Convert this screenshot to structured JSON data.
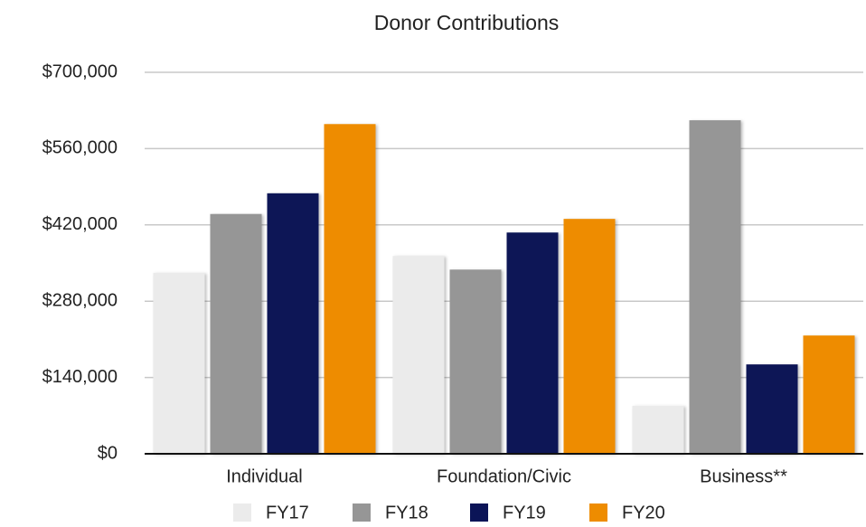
{
  "chart_data": {
    "type": "bar",
    "title": "Donor Contributions",
    "categories": [
      "Individual",
      "Foundation/Civic",
      "Business**"
    ],
    "series": [
      {
        "name": "FY17",
        "color": "#ebebeb",
        "values": [
          332000,
          363000,
          88000
        ]
      },
      {
        "name": "FY18",
        "color": "#969696",
        "values": [
          440000,
          338000,
          612000
        ]
      },
      {
        "name": "FY19",
        "color": "#0b1457",
        "values": [
          478000,
          406000,
          164000
        ]
      },
      {
        "name": "FY20",
        "color": "#ee8c00",
        "values": [
          605000,
          431000,
          217000
        ]
      }
    ],
    "ylim": [
      0,
      700000
    ],
    "yticks": [
      {
        "value": 0,
        "label": "$0"
      },
      {
        "value": 140000,
        "label": "$140,000"
      },
      {
        "value": 280000,
        "label": "$280,000"
      },
      {
        "value": 420000,
        "label": "$420,000"
      },
      {
        "value": 560000,
        "label": "$560,000"
      },
      {
        "value": 700000,
        "label": "$700,000"
      }
    ],
    "grid": true,
    "legend": "bottom"
  }
}
